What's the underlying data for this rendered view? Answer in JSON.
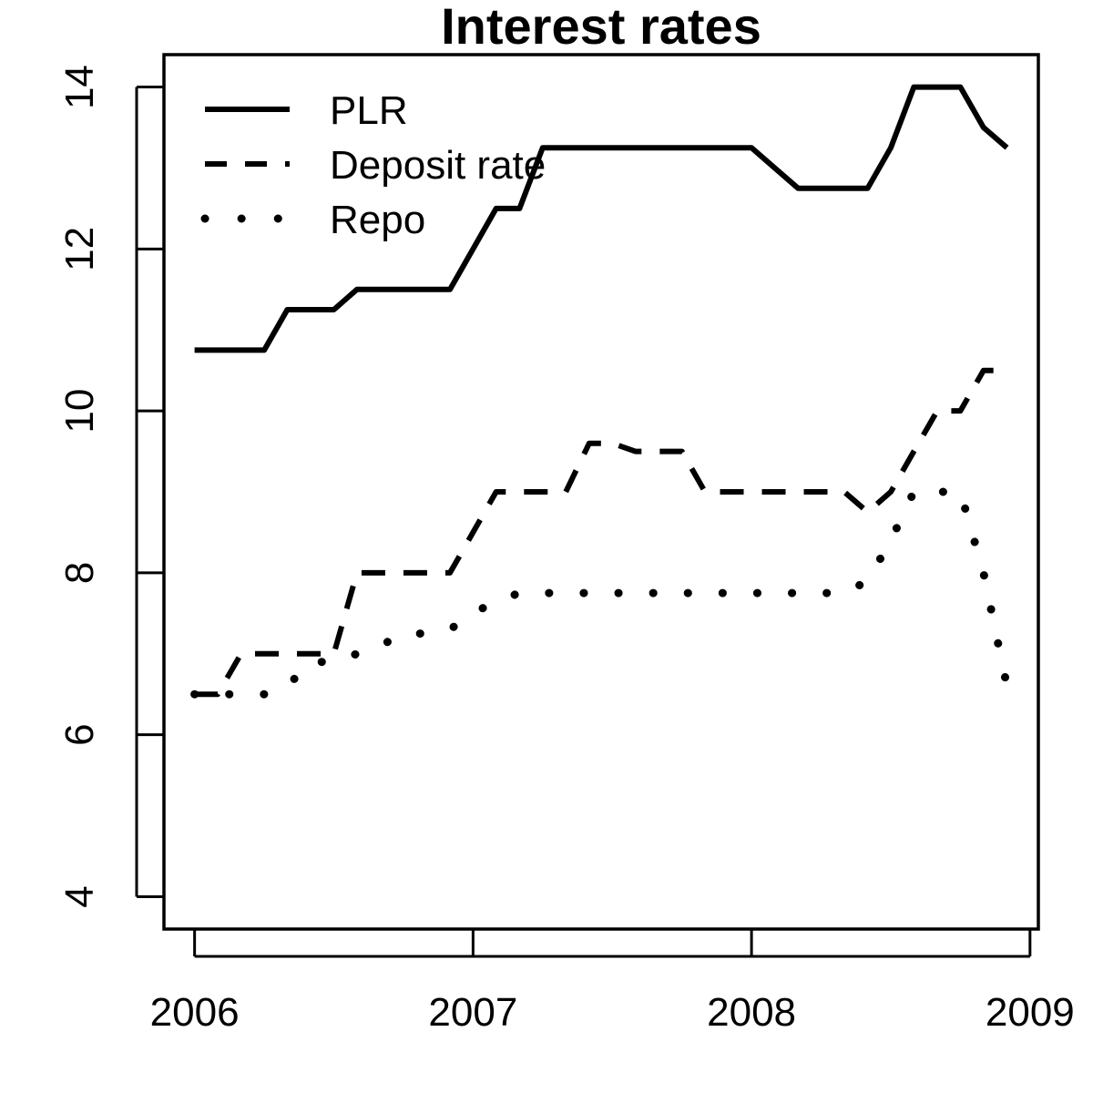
{
  "chart_data": {
    "type": "line",
    "title": "Interest rates",
    "xlabel": "",
    "ylabel": "",
    "xlim": [
      2005.89,
      2009.03
    ],
    "ylim": [
      3.6,
      14.4
    ],
    "x_ticks": [
      2006,
      2007,
      2008,
      2009
    ],
    "x_tick_labels": [
      "2006",
      "2007",
      "2008",
      "2009"
    ],
    "y_ticks": [
      4,
      6,
      8,
      10,
      12,
      14
    ],
    "y_tick_labels": [
      "4",
      "6",
      "8",
      "10",
      "12",
      "14"
    ],
    "grid": false,
    "legend_position": "top-left",
    "x": [
      2006.0,
      2006.083,
      2006.167,
      2006.25,
      2006.333,
      2006.417,
      2006.5,
      2006.583,
      2006.667,
      2006.75,
      2006.833,
      2006.917,
      2007.0,
      2007.083,
      2007.167,
      2007.25,
      2007.333,
      2007.417,
      2007.5,
      2007.583,
      2007.667,
      2007.75,
      2007.833,
      2007.917,
      2008.0,
      2008.083,
      2008.167,
      2008.25,
      2008.333,
      2008.417,
      2008.5,
      2008.583,
      2008.667,
      2008.75,
      2008.833,
      2008.917
    ],
    "series": [
      {
        "name": "PLR",
        "linestyle": "solid",
        "color": "#000000",
        "values": [
          10.75,
          10.75,
          10.75,
          10.75,
          11.25,
          11.25,
          11.25,
          11.5,
          11.5,
          11.5,
          11.5,
          11.5,
          12.0,
          12.5,
          12.5,
          13.25,
          13.25,
          13.25,
          13.25,
          13.25,
          13.25,
          13.25,
          13.25,
          13.25,
          13.25,
          13.0,
          12.75,
          12.75,
          12.75,
          12.75,
          13.25,
          14.0,
          14.0,
          14.0,
          13.5,
          13.25
        ]
      },
      {
        "name": "Deposit rate",
        "linestyle": "dashed",
        "color": "#000000",
        "values": [
          6.5,
          6.5,
          7.0,
          7.0,
          7.0,
          7.0,
          7.0,
          8.0,
          8.0,
          8.0,
          8.0,
          8.0,
          8.5,
          9.0,
          9.0,
          9.0,
          9.0,
          9.6,
          9.6,
          9.5,
          9.5,
          9.5,
          9.0,
          9.0,
          9.0,
          9.0,
          9.0,
          9.0,
          9.0,
          8.75,
          9.0,
          9.5,
          10.0,
          10.0,
          10.5,
          10.5
        ]
      },
      {
        "name": "Repo",
        "linestyle": "dotted",
        "color": "#000000",
        "values": [
          6.5,
          6.5,
          6.5,
          6.5,
          6.6,
          6.9,
          6.9,
          7.0,
          7.1,
          7.25,
          7.25,
          7.3,
          7.5,
          7.65,
          7.75,
          7.75,
          7.75,
          7.75,
          7.75,
          7.75,
          7.75,
          7.75,
          7.75,
          7.75,
          7.75,
          7.75,
          7.75,
          7.75,
          7.75,
          7.9,
          8.4,
          9.0,
          9.0,
          9.0,
          8.0,
          6.6
        ]
      }
    ]
  }
}
